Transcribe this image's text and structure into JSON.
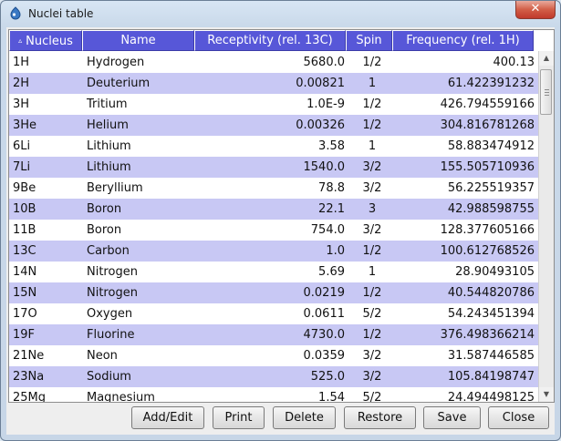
{
  "window": {
    "title": "Nuclei table",
    "close_glyph": "✕",
    "app_icon": "app-icon",
    "close_icon": "close-icon"
  },
  "table": {
    "sort_indicator": "▵",
    "columns": [
      "Nucleus",
      "Name",
      "Receptivity (rel. 13C)",
      "Spin",
      "Frequency (rel. 1H)"
    ],
    "rows": [
      [
        "1H",
        "Hydrogen",
        "5680.0",
        "1/2",
        "400.13"
      ],
      [
        "2H",
        "Deuterium",
        "0.00821",
        "1",
        "61.422391232"
      ],
      [
        "3H",
        "Tritium",
        "1.0E-9",
        "1/2",
        "426.794559166"
      ],
      [
        "3He",
        "Helium",
        "0.00326",
        "1/2",
        "304.816781268"
      ],
      [
        "6Li",
        "Lithium",
        "3.58",
        "1",
        "58.883474912"
      ],
      [
        "7Li",
        "Lithium",
        "1540.0",
        "3/2",
        "155.505710936"
      ],
      [
        "9Be",
        "Beryllium",
        "78.8",
        "3/2",
        "56.225519357"
      ],
      [
        "10B",
        "Boron",
        "22.1",
        "3",
        "42.988598755"
      ],
      [
        "11B",
        "Boron",
        "754.0",
        "3/2",
        "128.377605166"
      ],
      [
        "13C",
        "Carbon",
        "1.0",
        "1/2",
        "100.612768526"
      ],
      [
        "14N",
        "Nitrogen",
        "5.69",
        "1",
        "28.90493105"
      ],
      [
        "15N",
        "Nitrogen",
        "0.0219",
        "1/2",
        "40.544820786"
      ],
      [
        "17O",
        "Oxygen",
        "0.0611",
        "5/2",
        "54.243451394"
      ],
      [
        "19F",
        "Fluorine",
        "4730.0",
        "1/2",
        "376.498366214"
      ],
      [
        "21Ne",
        "Neon",
        "0.0359",
        "3/2",
        "31.587446585"
      ],
      [
        "23Na",
        "Sodium",
        "525.0",
        "3/2",
        "105.84198747"
      ],
      [
        "25Mg",
        "Magnesium",
        "1.54",
        "5/2",
        "24.494498125"
      ]
    ]
  },
  "scrollbar": {
    "up_glyph": "▲",
    "down_glyph": "▼",
    "position_fraction": 0.03
  },
  "buttons": {
    "add_edit": "Add/Edit",
    "print": "Print",
    "delete": "Delete",
    "restore": "Restore",
    "save": "Save",
    "close": "Close"
  },
  "colors": {
    "header_bg": "#5757d8",
    "alt_row_bg": "#c8c8f4",
    "close_button": "#c0392b"
  }
}
